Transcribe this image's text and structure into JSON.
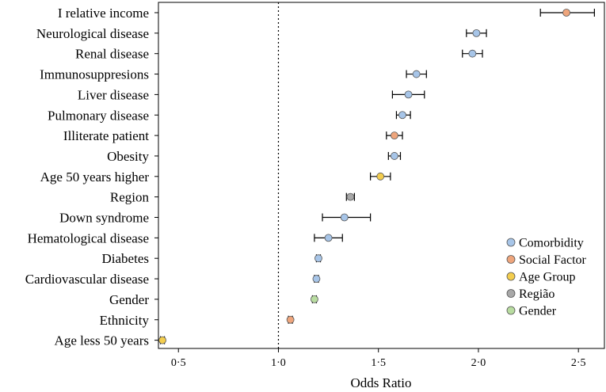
{
  "chart_data": {
    "type": "forest",
    "xlabel": "Odds Ratio",
    "xlim": [
      0.4,
      2.63
    ],
    "reference_line": 1.0,
    "x_ticks": [
      {
        "value": 0.5,
        "label": "0·5"
      },
      {
        "value": 1.0,
        "label": "1·0"
      },
      {
        "value": 1.5,
        "label": "1·5"
      },
      {
        "value": 2.0,
        "label": "2·0"
      },
      {
        "value": 2.5,
        "label": "2·5"
      }
    ],
    "rows": [
      {
        "label": "I relative income",
        "or": 2.44,
        "lo": 2.31,
        "hi": 2.58,
        "group": "Social Factor"
      },
      {
        "label": "Neurological disease",
        "or": 1.99,
        "lo": 1.94,
        "hi": 2.04,
        "group": "Comorbidity"
      },
      {
        "label": "Renal disease",
        "or": 1.97,
        "lo": 1.92,
        "hi": 2.02,
        "group": "Comorbidity"
      },
      {
        "label": "Immunosuppresions",
        "or": 1.69,
        "lo": 1.64,
        "hi": 1.74,
        "group": "Comorbidity"
      },
      {
        "label": "Liver disease",
        "or": 1.65,
        "lo": 1.57,
        "hi": 1.73,
        "group": "Comorbidity"
      },
      {
        "label": "Pulmonary disease",
        "or": 1.62,
        "lo": 1.59,
        "hi": 1.66,
        "group": "Comorbidity"
      },
      {
        "label": "Illiterate patient",
        "or": 1.58,
        "lo": 1.54,
        "hi": 1.62,
        "group": "Social Factor"
      },
      {
        "label": "Obesity",
        "or": 1.58,
        "lo": 1.55,
        "hi": 1.61,
        "group": "Comorbidity"
      },
      {
        "label": "Age 50 years higher",
        "or": 1.51,
        "lo": 1.46,
        "hi": 1.56,
        "group": "Age Group"
      },
      {
        "label": "Region",
        "or": 1.36,
        "lo": 1.34,
        "hi": 1.38,
        "group": "Região"
      },
      {
        "label": "Down syndrome",
        "or": 1.33,
        "lo": 1.22,
        "hi": 1.46,
        "group": "Comorbidity"
      },
      {
        "label": "Hematological disease",
        "or": 1.25,
        "lo": 1.18,
        "hi": 1.32,
        "group": "Comorbidity"
      },
      {
        "label": "Diabetes",
        "or": 1.2,
        "lo": 1.19,
        "hi": 1.21,
        "group": "Comorbidity"
      },
      {
        "label": "Cardiovascular disease",
        "or": 1.19,
        "lo": 1.18,
        "hi": 1.2,
        "group": "Comorbidity"
      },
      {
        "label": "Gender",
        "or": 1.18,
        "lo": 1.17,
        "hi": 1.19,
        "group": "Gender"
      },
      {
        "label": "Ethnicity",
        "or": 1.06,
        "lo": 1.05,
        "hi": 1.07,
        "group": "Social Factor"
      },
      {
        "label": "Age less 50 years",
        "or": 0.42,
        "lo": 0.41,
        "hi": 0.43,
        "group": "Age Group"
      }
    ],
    "legend": {
      "position": "bottom-right",
      "entries": [
        {
          "label": "Comorbidity",
          "color": "#a7c5e8"
        },
        {
          "label": "Social Factor",
          "color": "#eea57c"
        },
        {
          "label": "Age Group",
          "color": "#f3cd4e"
        },
        {
          "label": "Região",
          "color": "#a8a8a8"
        },
        {
          "label": "Gender",
          "color": "#b8dca0"
        }
      ]
    }
  }
}
